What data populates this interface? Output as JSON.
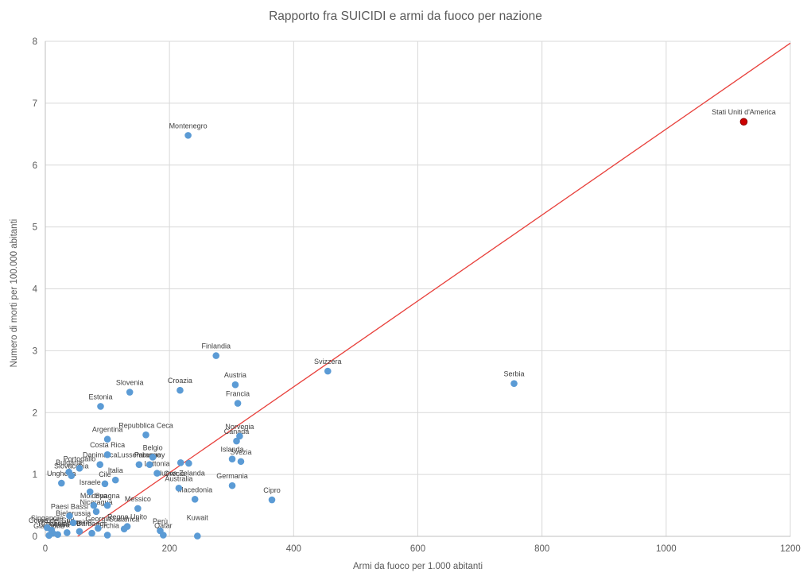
{
  "chart_data": {
    "type": "scatter",
    "title": "Rapporto fra SUICIDI e armi da fuoco per nazione",
    "xlabel": "Armi da fuoco per 1.000 abitanti",
    "ylabel": "Numero di morti per 100.000 abitanti",
    "xlim": [
      0,
      1200
    ],
    "ylim": [
      0,
      8
    ],
    "xticks": [
      0,
      200,
      400,
      600,
      800,
      1000,
      1200
    ],
    "yticks": [
      0,
      1,
      2,
      3,
      4,
      5,
      6,
      7,
      8
    ],
    "grid": true,
    "legend": "none",
    "colors": {
      "point": "#5B9BD5",
      "highlight_point": "#CC0000",
      "trendline": "#E8413C",
      "gridline": "#D9D9D9",
      "axis_line": "#BFBFBF",
      "tick_text": "#595959",
      "label_text": "#404040"
    },
    "trendline": {
      "x1": 52,
      "y1": 0,
      "x2": 1200,
      "y2": 7.97
    },
    "points": [
      {
        "label": "Stati Uniti d'America",
        "x": 1125,
        "y": 6.7,
        "highlight": true
      },
      {
        "label": "Montenegro",
        "x": 230,
        "y": 6.48
      },
      {
        "label": "Finlandia",
        "x": 275,
        "y": 2.92
      },
      {
        "label": "Svizzera",
        "x": 455,
        "y": 2.67
      },
      {
        "label": "Serbia",
        "x": 755,
        "y": 2.47
      },
      {
        "label": "Austria",
        "x": 306,
        "y": 2.45
      },
      {
        "label": "Croazia",
        "x": 217,
        "y": 2.36
      },
      {
        "label": "Slovenia",
        "x": 136,
        "y": 2.33
      },
      {
        "label": "Francia",
        "x": 310,
        "y": 2.15
      },
      {
        "label": "Estonia",
        "x": 89,
        "y": 2.1
      },
      {
        "label": "Repubblica Ceca",
        "x": 162,
        "y": 1.64
      },
      {
        "label": "Norvegia",
        "x": 313,
        "y": 1.62
      },
      {
        "label": "Argentina",
        "x": 100,
        "y": 1.57
      },
      {
        "label": "Canada",
        "x": 308,
        "y": 1.54
      },
      {
        "label": "Costa Rica",
        "x": 100,
        "y": 1.32
      },
      {
        "label": "Belgio",
        "x": 173,
        "y": 1.28
      },
      {
        "label": "Islanda",
        "x": 301,
        "y": 1.25
      },
      {
        "label": "Svezia",
        "x": 315,
        "y": 1.21
      },
      {
        "label": "Nuova Zelanda",
        "x": 218,
        "y": 1.19,
        "ldy": 16
      },
      {
        "label": "Grecia",
        "x": 231,
        "y": 1.18,
        "ldy": 16,
        "ldx": -18
      },
      {
        "label": "Lussemburgo",
        "x": 151,
        "y": 1.16
      },
      {
        "label": "Paraguay",
        "x": 168,
        "y": 1.16
      },
      {
        "label": "Danimarca",
        "x": 88,
        "y": 1.16
      },
      {
        "label": "Portogallo",
        "x": 55,
        "y": 1.1
      },
      {
        "label": "Bulgaria",
        "x": 38,
        "y": 1.04
      },
      {
        "label": "Lettonia",
        "x": 180,
        "y": 1.02
      },
      {
        "label": "Slovacchia",
        "x": 42,
        "y": 0.98
      },
      {
        "label": "Italia",
        "x": 113,
        "y": 0.91
      },
      {
        "label": "Ungheria",
        "x": 26,
        "y": 0.86
      },
      {
        "label": "Cile",
        "x": 96,
        "y": 0.85
      },
      {
        "label": "Germania",
        "x": 301,
        "y": 0.82
      },
      {
        "label": "Australia",
        "x": 215,
        "y": 0.78
      },
      {
        "label": "Israele",
        "x": 72,
        "y": 0.72
      },
      {
        "label": "Macedonia",
        "x": 241,
        "y": 0.6
      },
      {
        "label": "Cipro",
        "x": 365,
        "y": 0.59
      },
      {
        "label": "Moldova",
        "x": 78,
        "y": 0.5
      },
      {
        "label": "Spagna",
        "x": 100,
        "y": 0.5
      },
      {
        "label": "Messico",
        "x": 149,
        "y": 0.45
      },
      {
        "label": "Nicaragua",
        "x": 82,
        "y": 0.4
      },
      {
        "label": "Paesi Bassi",
        "x": 39,
        "y": 0.33
      },
      {
        "label": "Bielorussia",
        "x": 45,
        "y": 0.22
      },
      {
        "label": "Regno Unito",
        "x": 132,
        "y": 0.16
      },
      {
        "label": "Singapore",
        "x": 3,
        "y": 0.14
      },
      {
        "label": "Georgia",
        "x": 85,
        "y": 0.13
      },
      {
        "label": "Sudafrica",
        "x": 127,
        "y": 0.12
      },
      {
        "label": "Corea del Sud",
        "x": 10,
        "y": 0.1
      },
      {
        "label": "Perù",
        "x": 185,
        "y": 0.09
      },
      {
        "label": "Ucraina",
        "x": 55,
        "y": 0.08
      },
      {
        "label": "Filippine",
        "x": 35,
        "y": 0.06
      },
      {
        "label": "Barbados",
        "x": 75,
        "y": 0.05
      },
      {
        "label": "Romania",
        "x": 12,
        "y": 0.05
      },
      {
        "label": "Polonia",
        "x": 20,
        "y": 0.03
      },
      {
        "label": "Qatar",
        "x": 190,
        "y": 0.02
      },
      {
        "label": "Turchia",
        "x": 100,
        "y": 0.02
      },
      {
        "label": "Giappone",
        "x": 6,
        "y": 0.015
      },
      {
        "label": "Kuwait",
        "x": 245,
        "y": 0.005,
        "ldy": -20
      }
    ]
  }
}
